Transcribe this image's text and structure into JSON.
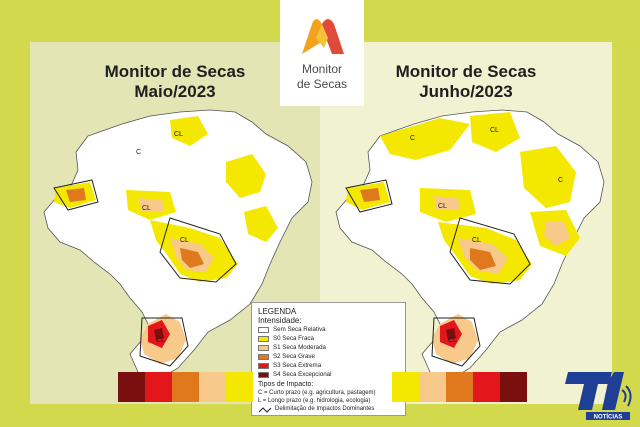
{
  "logo": {
    "line1": "Monitor",
    "line2": "de Secas"
  },
  "maps": [
    {
      "title_line1": "Monitor de Secas",
      "title_line2": "Maio/2023"
    },
    {
      "title_line1": "Monitor de Secas",
      "title_line2": "Junho/2023"
    }
  ],
  "map_labels": {
    "short_term": "C",
    "long_term": "L",
    "combined": "CL"
  },
  "legend": {
    "title": "LEGENDA",
    "intensity_title": "Intensidade:",
    "items": [
      {
        "label": "Sem Seca Relativa",
        "color": "#ffffff"
      },
      {
        "label": "S0 Seca Fraca",
        "color": "#f5e800"
      },
      {
        "label": "S1 Seca Moderada",
        "color": "#f7c98a"
      },
      {
        "label": "S2 Seca Grave",
        "color": "#e0781e"
      },
      {
        "label": "S3 Seca Extrema",
        "color": "#e3161b"
      },
      {
        "label": "S4 Seca Excepcional",
        "color": "#7a0f0f"
      }
    ],
    "impact_title": "Tipos de Impacto:",
    "impact_short": "C = Curto prazo (e.g. agricultura, pastagem)",
    "impact_long": "L = Longo prazo (e.g. hidrologia, ecologia)",
    "boundary_label": "Delimitação de Impactos Dominantes"
  },
  "scale_colors_left": [
    "#7a0f0f",
    "#e3161b",
    "#e0781e",
    "#f7c98a",
    "#f5e800"
  ],
  "scale_colors_right": [
    "#f5e800",
    "#f7c98a",
    "#e0781e",
    "#e3161b",
    "#7a0f0f"
  ],
  "watermark": {
    "brand": "T1",
    "subtitle": "NOTÍCIAS"
  }
}
